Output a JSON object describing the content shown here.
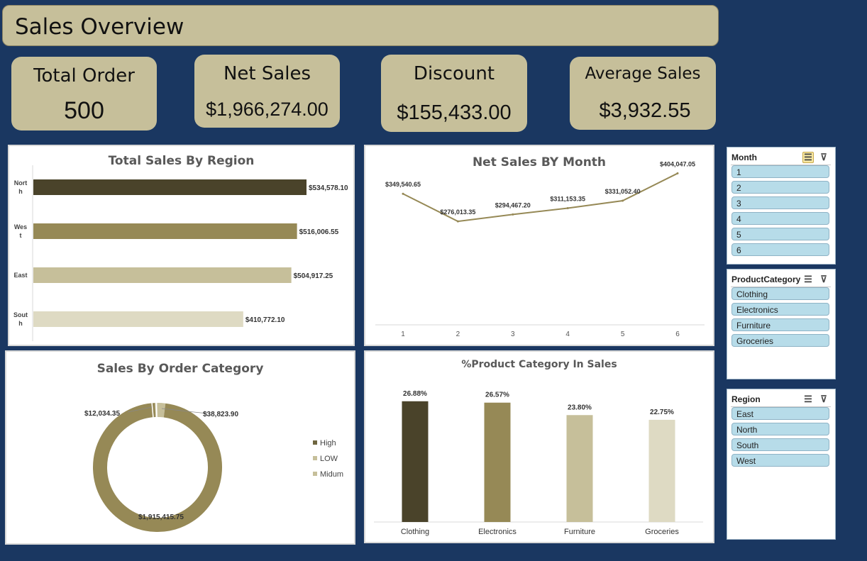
{
  "header": {
    "title": "Sales Overview"
  },
  "kpis": {
    "total_order": {
      "label": "Total Order",
      "value": "500"
    },
    "net_sales": {
      "label": "Net Sales",
      "value": "$1,966,274.00"
    },
    "discount": {
      "label": "Discount",
      "value": "$155,433.00"
    },
    "average_sales": {
      "label": "Average Sales",
      "value": "$3,932.55"
    }
  },
  "colors": {
    "background": "#1a3761",
    "card": "#c6bf9a",
    "dark": "#4a432a",
    "olive": "#968956",
    "tan": "#c6bf9a",
    "cream": "#dedac3",
    "slicer_item": "#b7dce9"
  },
  "chart_data": [
    {
      "type": "bar",
      "title": "Total Sales By Region",
      "categories": [
        "North",
        "West",
        "East",
        "South"
      ],
      "category_labels": [
        "Nort\nh",
        "Wes\nt",
        "East",
        "Sout\nh"
      ],
      "values": [
        534578.1,
        516006.55,
        504917.25,
        410772.1
      ],
      "data_labels": [
        "$534,578.10",
        "$516,006.55",
        "$504,917.25",
        "$410,772.10"
      ],
      "orientation": "horizontal",
      "colors": [
        "#4a432a",
        "#968956",
        "#c6bf9a",
        "#dedac3"
      ]
    },
    {
      "type": "line",
      "title": "Net Sales BY Month",
      "x": [
        "1",
        "2",
        "3",
        "4",
        "5",
        "6"
      ],
      "values": [
        349540.65,
        276013.35,
        294467.2,
        311153.35,
        331052.4,
        404047.05
      ],
      "data_labels": [
        "$349,540.65",
        "$276,013.35",
        "$294,467.20",
        "$311,153.35",
        "$331,052.40",
        "$404,047.05"
      ],
      "ylim": [
        0,
        420000
      ],
      "color": "#968956"
    },
    {
      "type": "pie",
      "subtype": "doughnut",
      "title": "Sales By Order Category",
      "categories": [
        "High",
        "LOW",
        "Midum"
      ],
      "values": [
        1915415.75,
        12034.35,
        38823.9
      ],
      "data_labels": [
        "$1,915,415.75",
        "$12,034.35",
        "$38,823.90"
      ],
      "colors": [
        "#968956",
        "#c6bf9a",
        "#c6bf9a"
      ],
      "legend": "right"
    },
    {
      "type": "bar",
      "title": "%Product Category In Sales",
      "categories": [
        "Clothing",
        "Electronics",
        "Furniture",
        "Groceries"
      ],
      "values": [
        26.88,
        26.57,
        23.8,
        22.75
      ],
      "data_labels": [
        "26.88%",
        "26.57%",
        "23.80%",
        "22.75%"
      ],
      "ylim": [
        0,
        30
      ],
      "colors": [
        "#4a432a",
        "#968956",
        "#c6bf9a",
        "#dedac3"
      ]
    }
  ],
  "slicers": {
    "month": {
      "title": "Month",
      "items": [
        "1",
        "2",
        "3",
        "4",
        "5",
        "6"
      ]
    },
    "category": {
      "title": "ProductCategory",
      "items": [
        "Clothing",
        "Electronics",
        "Furniture",
        "Groceries"
      ]
    },
    "region": {
      "title": "Region",
      "items": [
        "East",
        "North",
        "South",
        "West"
      ]
    }
  },
  "icons": {
    "multi_select": "multi-select-icon",
    "clear_filter": "clear-filter-icon"
  }
}
